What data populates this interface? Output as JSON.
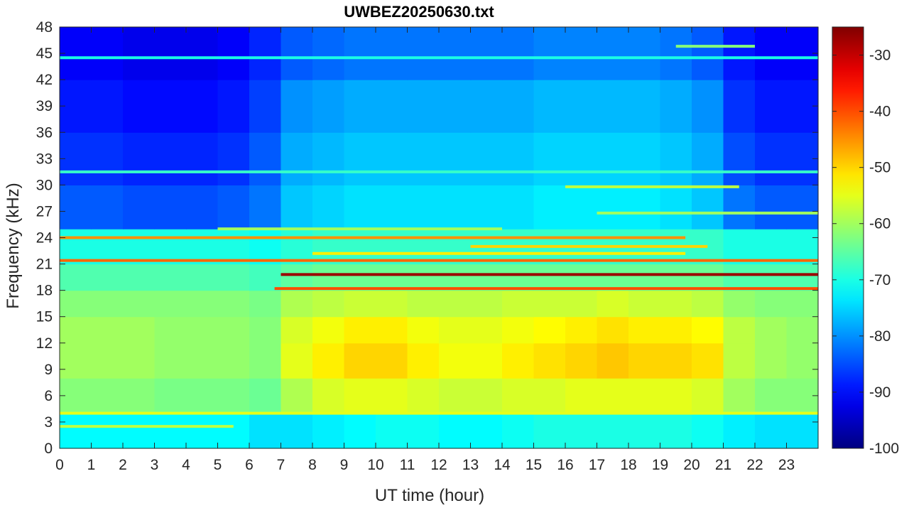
{
  "chart_data": {
    "type": "heatmap",
    "title": "UWBEZ20250630.txt",
    "xlabel": "UT time (hour)",
    "ylabel": "Frequency (kHz)",
    "xlim": [
      0,
      24
    ],
    "ylim": [
      0,
      48
    ],
    "x_ticks": [
      0,
      1,
      2,
      3,
      4,
      5,
      6,
      7,
      8,
      9,
      10,
      11,
      12,
      13,
      14,
      15,
      16,
      17,
      18,
      19,
      20,
      21,
      22,
      23
    ],
    "y_ticks": [
      0,
      3,
      6,
      9,
      12,
      15,
      18,
      21,
      24,
      27,
      30,
      33,
      36,
      39,
      42,
      45,
      48
    ],
    "colorbar": {
      "colormap": "jet",
      "clim": [
        -100,
        -25
      ],
      "ticks": [
        -100,
        -90,
        -80,
        -70,
        -60,
        -50,
        -40,
        -30
      ]
    },
    "bands": [
      {
        "y0": 0,
        "y1": 4,
        "values": [
          -72,
          -72,
          -72,
          -72,
          -72,
          -72,
          -74,
          -74,
          -73,
          -72,
          -71,
          -71,
          -72,
          -72,
          -71,
          -70,
          -70,
          -70,
          -70,
          -70,
          -71,
          -73,
          -74,
          -74
        ]
      },
      {
        "y0": 4,
        "y1": 8,
        "values": [
          -62,
          -62,
          -62,
          -63,
          -63,
          -63,
          -64,
          -59,
          -56,
          -55,
          -55,
          -56,
          -57,
          -57,
          -56,
          -56,
          -55,
          -55,
          -55,
          -55,
          -56,
          -60,
          -62,
          -62
        ]
      },
      {
        "y0": 8,
        "y1": 12,
        "values": [
          -60,
          -60,
          -60,
          -61,
          -61,
          -61,
          -62,
          -55,
          -52,
          -50,
          -50,
          -52,
          -54,
          -54,
          -52,
          -51,
          -50,
          -49,
          -50,
          -50,
          -51,
          -58,
          -60,
          -61
        ]
      },
      {
        "y0": 12,
        "y1": 15,
        "values": [
          -60,
          -60,
          -60,
          -61,
          -61,
          -61,
          -62,
          -56,
          -54,
          -52,
          -52,
          -54,
          -55,
          -55,
          -54,
          -53,
          -52,
          -51,
          -52,
          -52,
          -53,
          -58,
          -60,
          -61
        ]
      },
      {
        "y0": 15,
        "y1": 18,
        "values": [
          -62,
          -62,
          -62,
          -62,
          -62,
          -62,
          -63,
          -59,
          -58,
          -57,
          -57,
          -58,
          -58,
          -58,
          -57,
          -57,
          -57,
          -56,
          -57,
          -57,
          -58,
          -61,
          -62,
          -62
        ]
      },
      {
        "y0": 18,
        "y1": 21,
        "values": [
          -66,
          -66,
          -66,
          -66,
          -66,
          -66,
          -67,
          -65,
          -64,
          -64,
          -64,
          -64,
          -64,
          -64,
          -64,
          -64,
          -64,
          -64,
          -64,
          -64,
          -64,
          -66,
          -66,
          -66
        ]
      },
      {
        "y0": 21,
        "y1": 25,
        "values": [
          -70,
          -70,
          -70,
          -70,
          -70,
          -70,
          -71,
          -69,
          -68,
          -68,
          -68,
          -68,
          -68,
          -68,
          -68,
          -68,
          -68,
          -68,
          -68,
          -68,
          -68,
          -70,
          -70,
          -70
        ]
      },
      {
        "y0": 25,
        "y1": 30,
        "values": [
          -84,
          -84,
          -85,
          -85,
          -85,
          -84,
          -82,
          -76,
          -75,
          -74,
          -74,
          -74,
          -74,
          -74,
          -74,
          -73,
          -73,
          -73,
          -73,
          -74,
          -76,
          -82,
          -84,
          -84
        ]
      },
      {
        "y0": 30,
        "y1": 36,
        "values": [
          -87,
          -87,
          -88,
          -88,
          -88,
          -87,
          -84,
          -78,
          -77,
          -76,
          -76,
          -76,
          -76,
          -76,
          -76,
          -75,
          -75,
          -75,
          -75,
          -76,
          -78,
          -85,
          -87,
          -87
        ]
      },
      {
        "y0": 36,
        "y1": 42,
        "values": [
          -89,
          -89,
          -90,
          -90,
          -90,
          -89,
          -86,
          -80,
          -79,
          -78,
          -78,
          -78,
          -78,
          -78,
          -78,
          -77,
          -77,
          -77,
          -77,
          -78,
          -80,
          -87,
          -89,
          -89
        ]
      },
      {
        "y0": 42,
        "y1": 48,
        "values": [
          -91,
          -91,
          -92,
          -92,
          -92,
          -91,
          -88,
          -84,
          -83,
          -82,
          -82,
          -82,
          -82,
          -82,
          -82,
          -81,
          -81,
          -81,
          -81,
          -82,
          -84,
          -89,
          -91,
          -91
        ]
      }
    ],
    "lines": [
      {
        "freq": 19.8,
        "t0": 7.0,
        "t1": 24,
        "value": -27
      },
      {
        "freq": 18.2,
        "t0": 6.8,
        "t1": 24,
        "value": -40
      },
      {
        "freq": 21.4,
        "t0": 0,
        "t1": 24,
        "value": -42
      },
      {
        "freq": 24.0,
        "t0": 0,
        "t1": 19.8,
        "value": -45
      },
      {
        "freq": 23.0,
        "t0": 13.0,
        "t1": 20.5,
        "value": -50
      },
      {
        "freq": 22.2,
        "t0": 8.0,
        "t1": 19.8,
        "value": -52
      },
      {
        "freq": 4.0,
        "t0": 0,
        "t1": 24,
        "value": -55
      },
      {
        "freq": 25.0,
        "t0": 5.0,
        "t1": 14.0,
        "value": -60
      },
      {
        "freq": 29.8,
        "t0": 16.0,
        "t1": 21.5,
        "value": -58
      },
      {
        "freq": 26.8,
        "t0": 17.0,
        "t1": 24,
        "value": -60
      },
      {
        "freq": 45.8,
        "t0": 19.5,
        "t1": 22.0,
        "value": -62
      },
      {
        "freq": 31.5,
        "t0": 0,
        "t1": 24,
        "value": -68
      },
      {
        "freq": 44.5,
        "t0": 0,
        "t1": 24,
        "value": -70
      },
      {
        "freq": 2.5,
        "t0": 0,
        "t1": 5.5,
        "value": -58
      }
    ]
  }
}
